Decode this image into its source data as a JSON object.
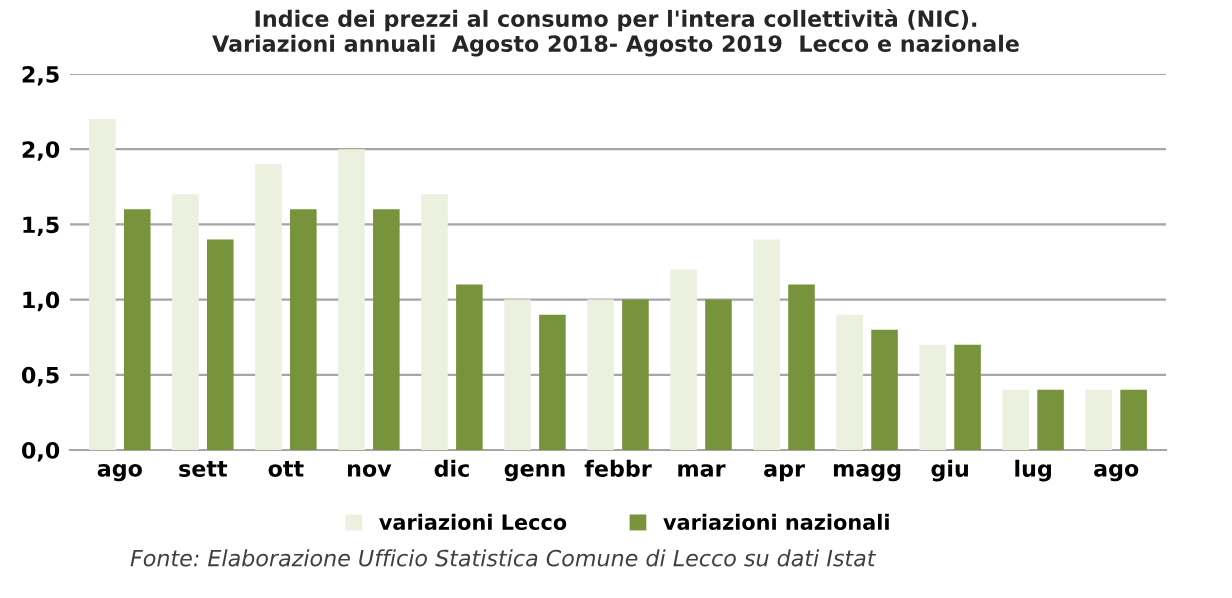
{
  "chart_data": {
    "type": "bar",
    "title": "Indice dei prezzi al consumo per l'intera collettività (NIC).\nVariazioni annuali  Agosto 2018- Agosto 2019  Lecco e nazionale",
    "categories": [
      "ago",
      "sett",
      "ott",
      "nov",
      "dic",
      "genn",
      "febbr",
      "mar",
      "apr",
      "magg",
      "giu",
      "lug",
      "ago"
    ],
    "series": [
      {
        "name": "variazioni Lecco",
        "color": "#ebf1de",
        "values": [
          2.2,
          1.7,
          1.9,
          2.0,
          1.7,
          1.0,
          1.0,
          1.2,
          1.4,
          0.9,
          0.7,
          0.4,
          0.4
        ]
      },
      {
        "name": "variazioni nazionali",
        "color": "#77933c",
        "values": [
          1.6,
          1.4,
          1.6,
          1.6,
          1.1,
          0.9,
          1.0,
          1.0,
          1.1,
          0.8,
          0.7,
          0.4,
          0.4
        ]
      }
    ],
    "ylim": [
      0,
      2.5
    ],
    "yticks": [
      {
        "value": 0,
        "label": "0,0"
      },
      {
        "value": 0.5,
        "label": "0,5"
      },
      {
        "value": 1.0,
        "label": "1,0"
      },
      {
        "value": 1.5,
        "label": "1,5"
      },
      {
        "value": 2.0,
        "label": "2,0"
      },
      {
        "value": 2.5,
        "label": "2,5"
      }
    ],
    "grid": "y",
    "legend": "bottom",
    "annotations": [
      "Fonte: Elaborazione Ufficio Statistica Comune di Lecco su dati Istat"
    ]
  }
}
